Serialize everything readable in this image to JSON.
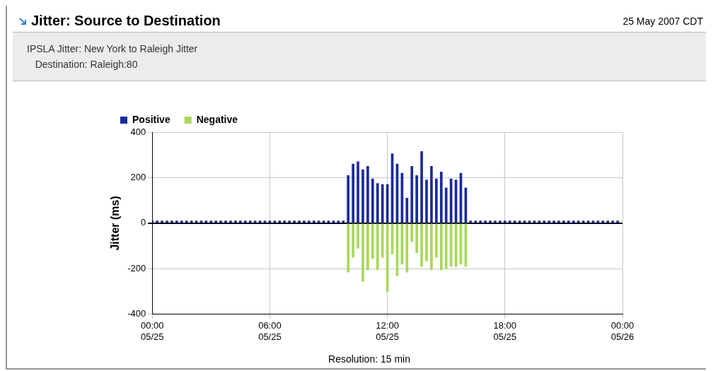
{
  "chart_data": {
    "type": "bar",
    "title": "Jitter: Source to Destination",
    "subtitle": "IPSLA Jitter: New York to Raleigh Jitter\n   Destination: Raleigh:80",
    "ylabel": "Jitter (ms)",
    "annotations": [
      "25 May 2007 CDT",
      "Resolution: 15 min"
    ],
    "x": [
      "2007-05-25T00:00",
      "2007-05-25T00:15",
      "2007-05-25T00:30",
      "2007-05-25T00:45",
      "2007-05-25T01:00",
      "2007-05-25T01:15",
      "2007-05-25T01:30",
      "2007-05-25T01:45",
      "2007-05-25T02:00",
      "2007-05-25T02:15",
      "2007-05-25T02:30",
      "2007-05-25T02:45",
      "2007-05-25T03:00",
      "2007-05-25T03:15",
      "2007-05-25T03:30",
      "2007-05-25T03:45",
      "2007-05-25T04:00",
      "2007-05-25T04:15",
      "2007-05-25T04:30",
      "2007-05-25T04:45",
      "2007-05-25T05:00",
      "2007-05-25T05:15",
      "2007-05-25T05:30",
      "2007-05-25T05:45",
      "2007-05-25T06:00",
      "2007-05-25T06:15",
      "2007-05-25T06:30",
      "2007-05-25T06:45",
      "2007-05-25T07:00",
      "2007-05-25T07:15",
      "2007-05-25T07:30",
      "2007-05-25T07:45",
      "2007-05-25T08:00",
      "2007-05-25T08:15",
      "2007-05-25T08:30",
      "2007-05-25T08:45",
      "2007-05-25T09:00",
      "2007-05-25T09:15",
      "2007-05-25T09:30",
      "2007-05-25T09:45",
      "2007-05-25T10:00",
      "2007-05-25T10:15",
      "2007-05-25T10:30",
      "2007-05-25T10:45",
      "2007-05-25T11:00",
      "2007-05-25T11:15",
      "2007-05-25T11:30",
      "2007-05-25T11:45",
      "2007-05-25T12:00",
      "2007-05-25T12:15",
      "2007-05-25T12:30",
      "2007-05-25T12:45",
      "2007-05-25T13:00",
      "2007-05-25T13:15",
      "2007-05-25T13:30",
      "2007-05-25T13:45",
      "2007-05-25T14:00",
      "2007-05-25T14:15",
      "2007-05-25T14:30",
      "2007-05-25T14:45",
      "2007-05-25T15:00",
      "2007-05-25T15:15",
      "2007-05-25T15:30",
      "2007-05-25T15:45",
      "2007-05-25T16:00",
      "2007-05-25T16:15",
      "2007-05-25T16:30",
      "2007-05-25T16:45",
      "2007-05-25T17:00",
      "2007-05-25T17:15",
      "2007-05-25T17:30",
      "2007-05-25T17:45",
      "2007-05-25T18:00",
      "2007-05-25T18:15",
      "2007-05-25T18:30",
      "2007-05-25T18:45",
      "2007-05-25T19:00",
      "2007-05-25T19:15",
      "2007-05-25T19:30",
      "2007-05-25T19:45",
      "2007-05-25T20:00",
      "2007-05-25T20:15",
      "2007-05-25T20:30",
      "2007-05-25T20:45",
      "2007-05-25T21:00",
      "2007-05-25T21:15",
      "2007-05-25T21:30",
      "2007-05-25T21:45",
      "2007-05-25T22:00",
      "2007-05-25T22:15",
      "2007-05-25T22:30",
      "2007-05-25T22:45",
      "2007-05-25T23:00",
      "2007-05-25T23:15",
      "2007-05-25T23:30",
      "2007-05-25T23:45"
    ],
    "series": [
      {
        "name": "Positive",
        "color": "#1a2a9a",
        "values": [
          10,
          10,
          10,
          10,
          10,
          10,
          10,
          10,
          10,
          10,
          10,
          10,
          10,
          10,
          10,
          10,
          10,
          10,
          10,
          10,
          10,
          10,
          10,
          10,
          10,
          10,
          10,
          10,
          10,
          10,
          10,
          10,
          10,
          10,
          10,
          10,
          10,
          10,
          10,
          10,
          210,
          260,
          270,
          235,
          250,
          195,
          175,
          170,
          170,
          305,
          260,
          220,
          110,
          250,
          210,
          315,
          190,
          250,
          195,
          225,
          155,
          195,
          190,
          220,
          155,
          10,
          10,
          10,
          10,
          10,
          10,
          10,
          10,
          10,
          10,
          10,
          10,
          10,
          10,
          10,
          10,
          10,
          10,
          10,
          10,
          10,
          10,
          10,
          10,
          10,
          10,
          10,
          10,
          10,
          10,
          10
        ]
      },
      {
        "name": "Negative",
        "color": "#a8d85a",
        "values": [
          null,
          null,
          null,
          null,
          null,
          null,
          null,
          null,
          null,
          null,
          null,
          null,
          null,
          null,
          null,
          null,
          null,
          null,
          null,
          null,
          null,
          null,
          null,
          null,
          null,
          null,
          null,
          null,
          null,
          null,
          null,
          null,
          null,
          null,
          null,
          null,
          null,
          null,
          null,
          null,
          -215,
          -150,
          -110,
          -255,
          -205,
          -155,
          -205,
          -150,
          -300,
          -135,
          -230,
          -180,
          -215,
          -80,
          -130,
          -190,
          -165,
          -205,
          -150,
          -205,
          -200,
          -190,
          -190,
          -180,
          -190,
          null,
          null,
          null,
          null,
          null,
          null,
          null,
          null,
          null,
          null,
          null,
          null,
          null,
          null,
          null,
          null,
          null,
          null,
          null,
          null,
          null,
          null,
          null,
          null,
          null,
          null,
          null,
          null,
          null,
          null,
          null
        ]
      }
    ],
    "xlim": [
      "2007-05-25T00:00",
      "2007-05-26T00:00"
    ],
    "xticks": [
      {
        "value": "2007-05-25T00:00",
        "label": "00:00\n05/25"
      },
      {
        "value": "2007-05-25T06:00",
        "label": "06:00\n05/25"
      },
      {
        "value": "2007-05-25T12:00",
        "label": "12:00\n05/25"
      },
      {
        "value": "2007-05-25T18:00",
        "label": "18:00\n05/25"
      },
      {
        "value": "2007-05-26T00:00",
        "label": "00:00\n05/26"
      }
    ],
    "ylim": [
      -400,
      400
    ],
    "yticks": [
      -400,
      -200,
      0,
      200,
      400
    ],
    "grid": true,
    "legend": "top left"
  }
}
